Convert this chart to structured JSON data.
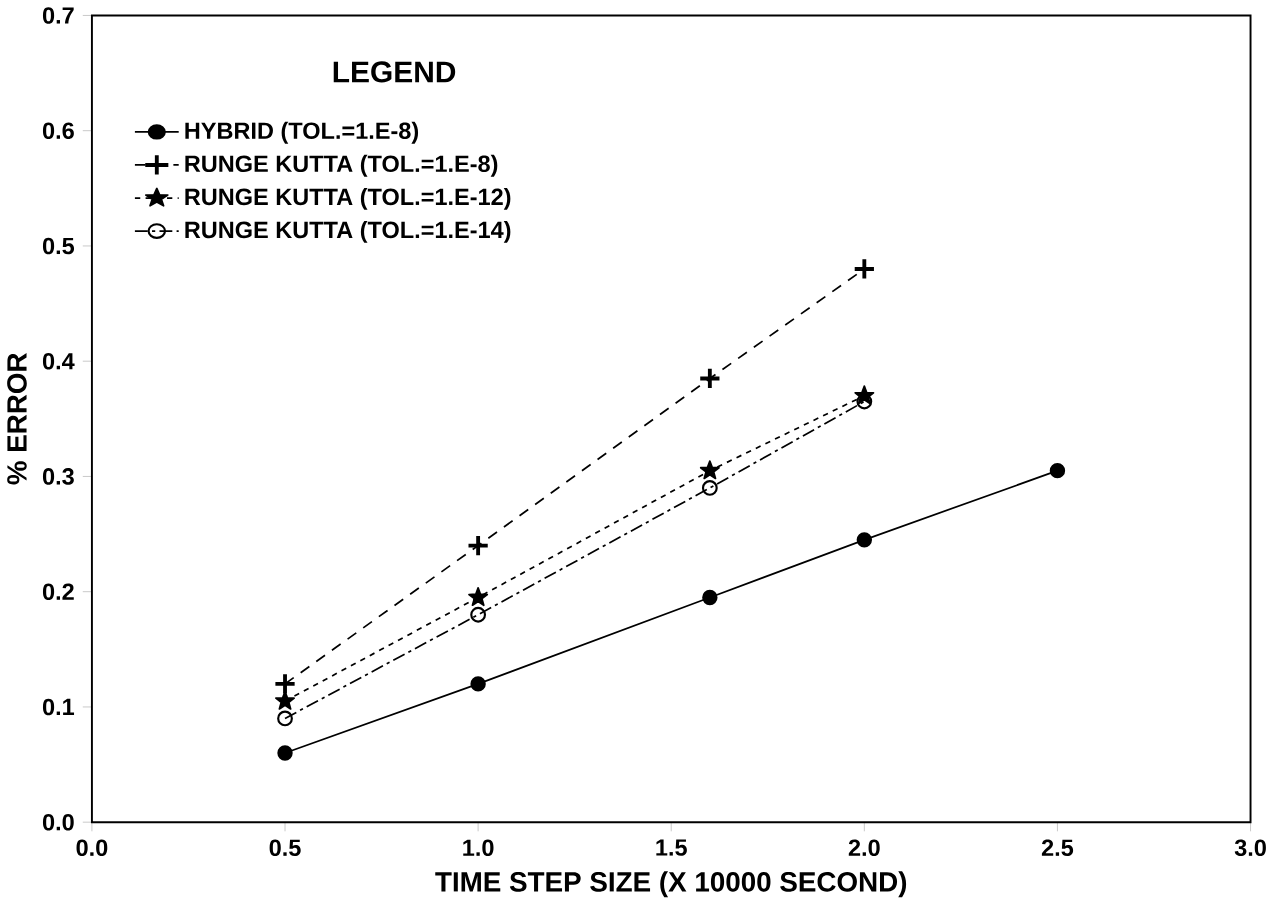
{
  "chart_data": {
    "type": "line",
    "xlabel": "TIME STEP SIZE (X 10000 SECOND)",
    "ylabel": "% ERROR",
    "legend_title": "LEGEND",
    "legend": "top left",
    "xlim": [
      0,
      3
    ],
    "ylim": [
      0,
      0.7
    ],
    "xticks": [
      {
        "value": 0,
        "label": "0.0"
      },
      0.5,
      {
        "value": 1,
        "label": "1.0"
      },
      1.5,
      {
        "value": 2,
        "label": "2.0"
      },
      2.5,
      {
        "value": 3,
        "label": "3.0"
      }
    ],
    "yticks": [
      {
        "value": 0,
        "label": "0.0"
      },
      0.1,
      0.2,
      0.3,
      0.4,
      0.5,
      0.6,
      0.7
    ],
    "series": [
      {
        "name": "HYBRID (TOL.=1.E-8)",
        "color": "#000000",
        "marker": "circle",
        "line_style": "solid",
        "x": [
          0.5,
          1.0,
          1.6,
          2.0,
          2.5
        ],
        "values": [
          0.06,
          0.12,
          0.195,
          0.245,
          0.305
        ]
      },
      {
        "name": "RUNGE KUTTA (TOL.=1.E-8)",
        "color": "#000000",
        "marker": "cross",
        "line_style": "dashed",
        "x": [
          0.5,
          1.0,
          1.6,
          2.0
        ],
        "values": [
          0.12,
          0.24,
          0.385,
          0.48
        ]
      },
      {
        "name": "RUNGE KUTTA (TOL.=1.E-12)",
        "color": "#000000",
        "marker": "star",
        "line_style": "dotted",
        "x": [
          0.5,
          1.0,
          1.6,
          2.0
        ],
        "values": [
          0.105,
          0.195,
          0.305,
          0.37
        ]
      },
      {
        "name": "RUNGE KUTTA (TOL.=1.E-14)",
        "color": "#000000",
        "marker": "open circle",
        "line_style": "dashdot",
        "x": [
          0.5,
          1.0,
          1.6,
          2.0
        ],
        "values": [
          0.09,
          0.18,
          0.29,
          0.365
        ]
      }
    ]
  }
}
